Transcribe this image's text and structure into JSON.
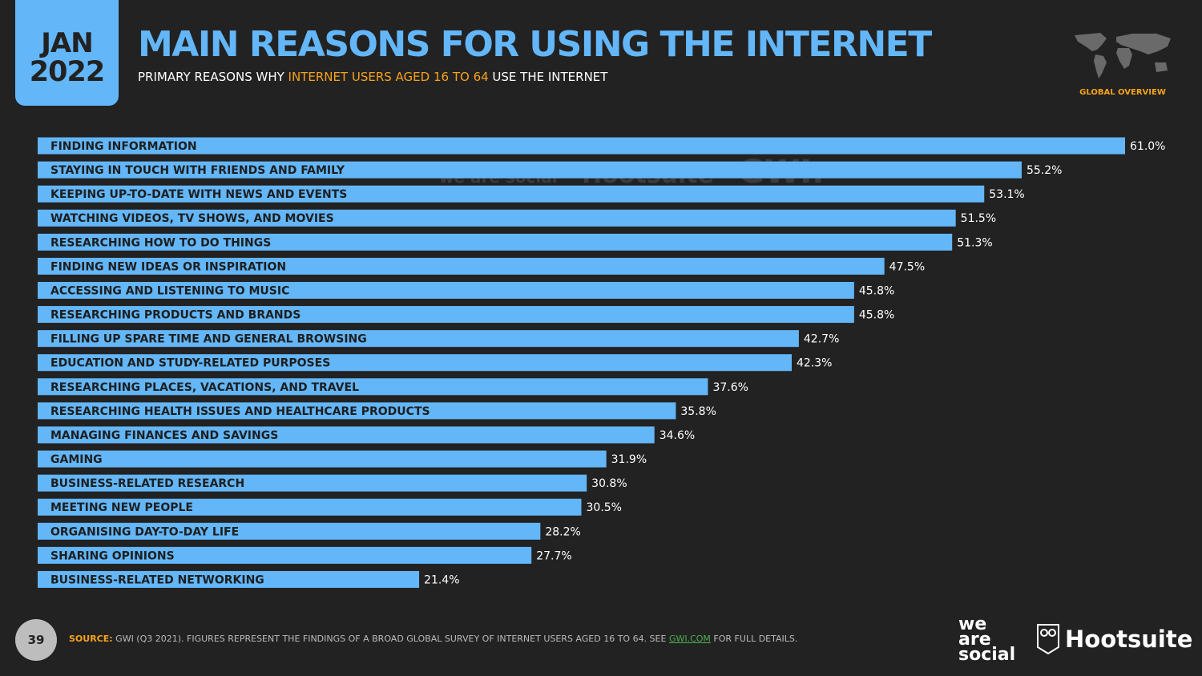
{
  "header": {
    "month": "JAN",
    "year": "2022",
    "title": "MAIN REASONS FOR USING THE INTERNET",
    "subtitle_pre": "PRIMARY REASONS WHY ",
    "subtitle_highlight": "INTERNET USERS AGED 16 TO 64",
    "subtitle_post": " USE THE INTERNET",
    "badge": "GLOBAL OVERVIEW"
  },
  "colors": {
    "bar": "#63b6f8",
    "accent": "#f7a21b",
    "background": "#222222"
  },
  "chart_data": {
    "type": "bar",
    "orientation": "horizontal",
    "categories": [
      "FINDING INFORMATION",
      "STAYING IN TOUCH WITH FRIENDS AND FAMILY",
      "KEEPING UP-TO-DATE WITH NEWS AND EVENTS",
      "WATCHING VIDEOS, TV SHOWS, AND MOVIES",
      "RESEARCHING HOW TO DO THINGS",
      "FINDING NEW IDEAS OR INSPIRATION",
      "ACCESSING AND LISTENING TO MUSIC",
      "RESEARCHING PRODUCTS AND BRANDS",
      "FILLING UP SPARE TIME AND GENERAL BROWSING",
      "EDUCATION AND STUDY-RELATED PURPOSES",
      "RESEARCHING PLACES, VACATIONS, AND TRAVEL",
      "RESEARCHING HEALTH ISSUES AND HEALTHCARE PRODUCTS",
      "MANAGING FINANCES AND SAVINGS",
      "GAMING",
      "BUSINESS-RELATED RESEARCH",
      "MEETING NEW PEOPLE",
      "ORGANISING DAY-TO-DAY LIFE",
      "SHARING OPINIONS",
      "BUSINESS-RELATED NETWORKING"
    ],
    "values": [
      61.0,
      55.2,
      53.1,
      51.5,
      51.3,
      47.5,
      45.8,
      45.8,
      42.7,
      42.3,
      37.6,
      35.8,
      34.6,
      31.9,
      30.8,
      30.5,
      28.2,
      27.7,
      21.4
    ],
    "value_labels": [
      "61.0%",
      "55.2%",
      "53.1%",
      "51.5%",
      "51.3%",
      "47.5%",
      "45.8%",
      "45.8%",
      "42.7%",
      "42.3%",
      "37.6%",
      "35.8%",
      "34.6%",
      "31.9%",
      "30.8%",
      "30.5%",
      "28.2%",
      "27.7%",
      "21.4%"
    ],
    "unit": "%",
    "xlim": [
      0,
      61
    ],
    "grid": false,
    "legend": "none"
  },
  "watermark": {
    "was": "we are social",
    "hootsuite": "Hootsuite",
    "gwi": "GWI."
  },
  "footer": {
    "page": "39",
    "source_key": "SOURCE:",
    "source_text": " GWI (Q3 2021). FIGURES REPRESENT THE FINDINGS OF A BROAD GLOBAL SURVEY OF INTERNET USERS AGED 16 TO 64. SEE ",
    "source_link": "GWI.COM",
    "source_end": " FOR FULL DETAILS.",
    "logo_was": "we are social",
    "logo_hootsuite": "Hootsuite"
  }
}
